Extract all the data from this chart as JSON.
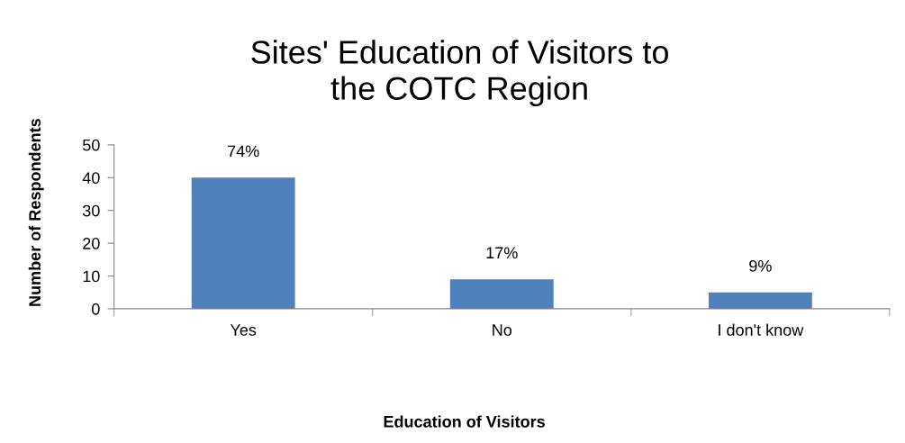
{
  "chart_data": {
    "type": "bar",
    "title": "Sites' Education of Visitors to\nthe COTC Region",
    "xlabel": "Education of Visitors",
    "ylabel": "Number of Respondents",
    "categories": [
      "Yes",
      "No",
      "I don't know"
    ],
    "values": [
      40,
      9,
      5
    ],
    "color": "#4f81bd",
    "annotations": [
      {
        "text": "74%",
        "x": "Yes",
        "y": 40
      },
      {
        "text": "17%",
        "x": "No",
        "y": 9
      },
      {
        "text": "9%",
        "x": "I don't know",
        "y": 5
      }
    ],
    "ylim": [
      0,
      50
    ],
    "yticks": [
      0,
      10,
      20,
      30,
      40,
      50
    ],
    "grid": false,
    "legend": false
  }
}
